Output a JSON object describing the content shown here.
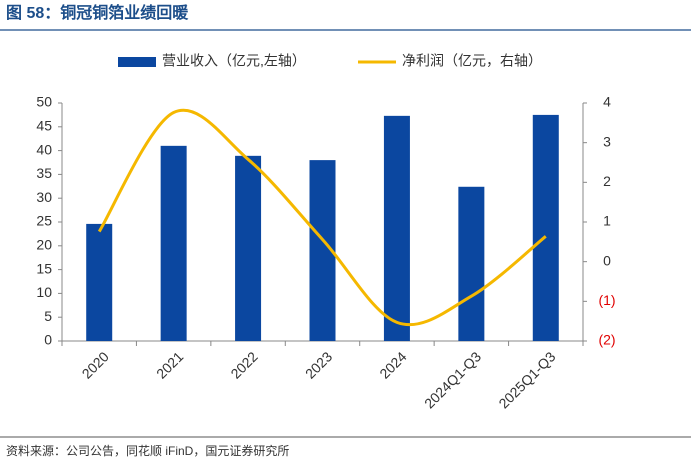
{
  "header": {
    "title": "图 58：铜冠铜箔业绩回暖"
  },
  "chart_data": {
    "type": "bar_line",
    "categories": [
      "2020",
      "2021",
      "2022",
      "2023",
      "2024",
      "2024Q1-Q3",
      "2025Q1-Q3"
    ],
    "series": [
      {
        "name": "营业收入（亿元,左轴）",
        "type": "bar",
        "color": "#0b47a0",
        "values": [
          24.6,
          41.0,
          38.9,
          38.0,
          47.3,
          32.4,
          47.5
        ]
      },
      {
        "name": "净利润（亿元，右轴）",
        "type": "line",
        "axis": "y2",
        "smooth": true,
        "color": "#f5b800",
        "values": [
          0.76,
          3.76,
          2.58,
          0.56,
          -1.53,
          -0.87,
          0.64
        ]
      }
    ],
    "ylim": [
      0,
      50
    ],
    "yticks": [
      0,
      5,
      10,
      15,
      20,
      25,
      30,
      35,
      40,
      45,
      50
    ],
    "y2lim": [
      -2,
      4
    ],
    "y2ticks": [
      {
        "value": -2,
        "label": "(2)"
      },
      {
        "value": -1,
        "label": "(1)"
      },
      0,
      1,
      2,
      3,
      4
    ],
    "negative_tick_color": "#e00000",
    "legend": "top"
  },
  "footer": {
    "source": "资料来源：公司公告，同花顺 iFinD，国元证券研究所"
  }
}
